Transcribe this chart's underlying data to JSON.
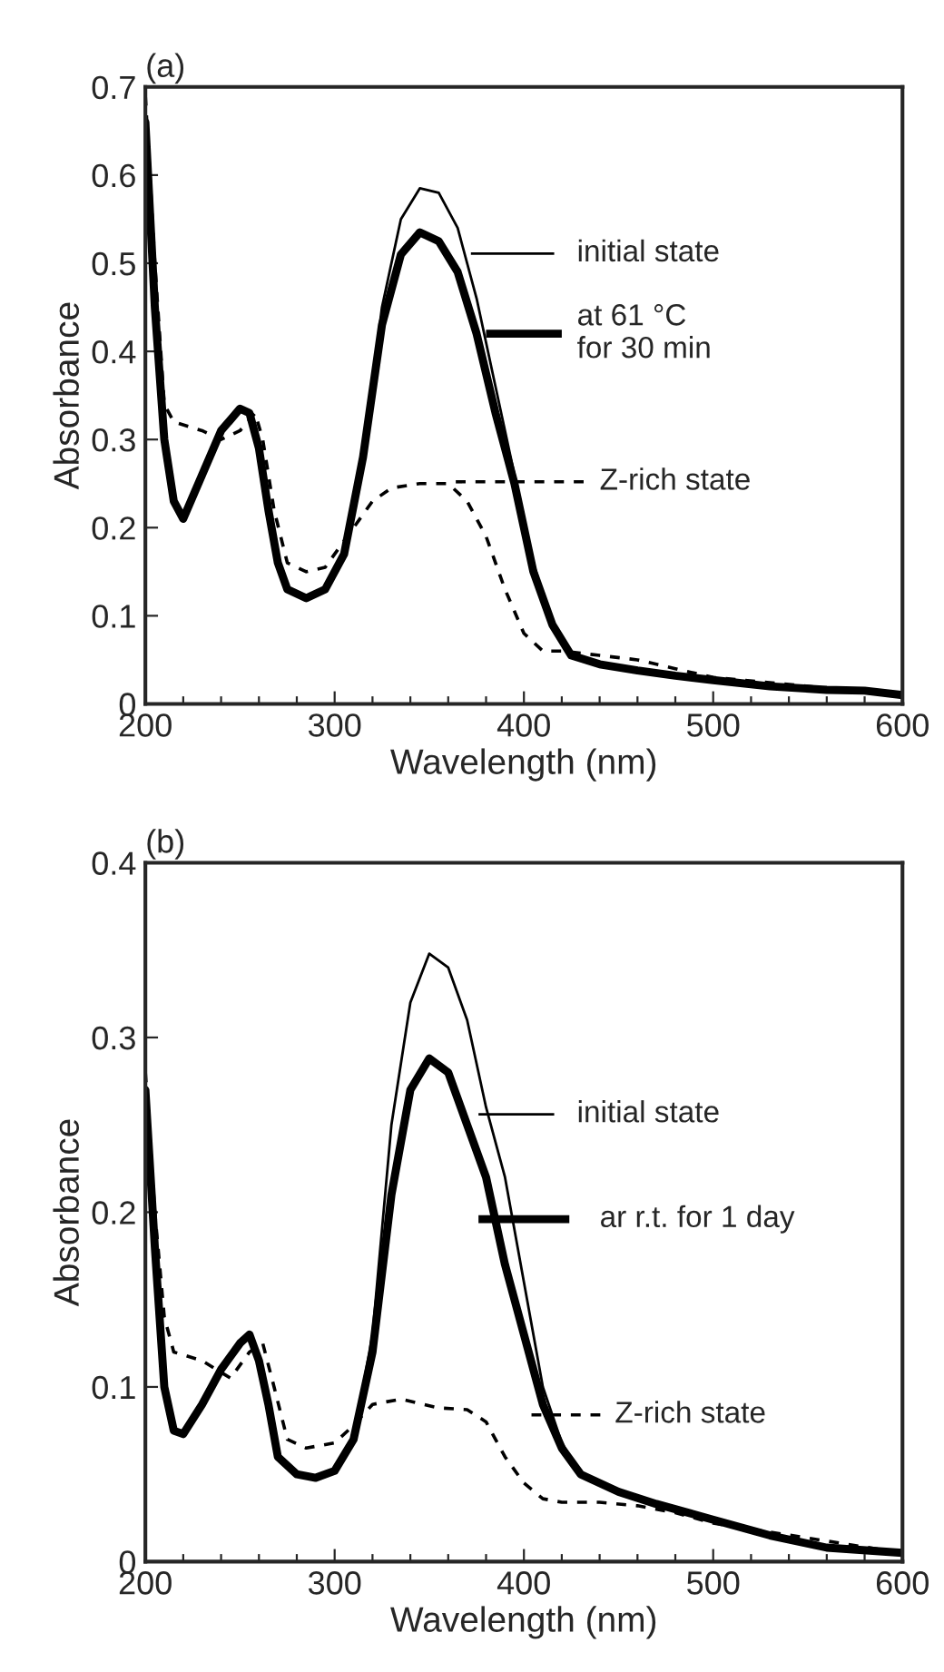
{
  "chart_data": [
    {
      "type": "line",
      "title": "(a)",
      "xlabel": "Wavelength (nm)",
      "ylabel": "Absorbance",
      "xlim": [
        200,
        600
      ],
      "ylim": [
        0,
        0.7
      ],
      "xticks": [
        200,
        {
          "value": 220,
          "label": null
        },
        {
          "value": 240,
          "label": null
        },
        {
          "value": 260,
          "label": null
        },
        {
          "value": 280,
          "label": null
        },
        300,
        {
          "value": 320,
          "label": null
        },
        {
          "value": 340,
          "label": null
        },
        {
          "value": 360,
          "label": null
        },
        {
          "value": 380,
          "label": null
        },
        400,
        {
          "value": 420,
          "label": null
        },
        {
          "value": 440,
          "label": null
        },
        {
          "value": 460,
          "label": null
        },
        {
          "value": 480,
          "label": null
        },
        500,
        {
          "value": 520,
          "label": null
        },
        {
          "value": 540,
          "label": null
        },
        {
          "value": 560,
          "label": null
        },
        {
          "value": 580,
          "label": null
        },
        600
      ],
      "yticks": [
        0,
        0.1,
        0.2,
        0.3,
        0.4,
        0.5,
        0.6,
        0.7
      ],
      "grid": false,
      "legend": "right",
      "marker": "none",
      "series": [
        {
          "name": "initial state",
          "color": "#000000",
          "line_style": "solid",
          "x": [
            200,
            205,
            210,
            215,
            220,
            230,
            240,
            250,
            255,
            260,
            265,
            270,
            275,
            285,
            295,
            305,
            315,
            325,
            335,
            345,
            355,
            365,
            375,
            385,
            395,
            405,
            415,
            425,
            440,
            460,
            480,
            500,
            530,
            560,
            580,
            600
          ],
          "values": [
            0.66,
            0.45,
            0.3,
            0.23,
            0.21,
            0.26,
            0.31,
            0.335,
            0.33,
            0.29,
            0.22,
            0.16,
            0.13,
            0.12,
            0.13,
            0.17,
            0.28,
            0.45,
            0.55,
            0.585,
            0.58,
            0.54,
            0.46,
            0.36,
            0.26,
            0.16,
            0.09,
            0.055,
            0.045,
            0.038,
            0.032,
            0.027,
            0.02,
            0.016,
            0.015,
            0.01
          ]
        },
        {
          "name": "at 61 °C\nfor 30 min",
          "color": "#000000",
          "line_style": "solid",
          "x": [
            200,
            205,
            210,
            215,
            220,
            230,
            240,
            250,
            255,
            260,
            265,
            270,
            275,
            285,
            295,
            305,
            315,
            325,
            335,
            345,
            355,
            365,
            375,
            385,
            395,
            405,
            415,
            425,
            440,
            460,
            480,
            500,
            530,
            560,
            580,
            600
          ],
          "values": [
            0.66,
            0.45,
            0.3,
            0.23,
            0.21,
            0.26,
            0.31,
            0.335,
            0.33,
            0.29,
            0.22,
            0.16,
            0.13,
            0.12,
            0.13,
            0.17,
            0.28,
            0.43,
            0.51,
            0.535,
            0.525,
            0.49,
            0.42,
            0.33,
            0.25,
            0.15,
            0.09,
            0.055,
            0.045,
            0.038,
            0.032,
            0.027,
            0.02,
            0.016,
            0.015,
            0.01
          ]
        },
        {
          "name": "Z-rich state",
          "color": "#000000",
          "line_style": "dashed",
          "x": [
            200,
            205,
            210,
            215,
            230,
            240,
            250,
            258,
            262,
            268,
            275,
            285,
            295,
            310,
            320,
            330,
            345,
            360,
            370,
            380,
            390,
            400,
            410,
            420,
            440,
            460,
            480,
            500,
            550,
            600
          ],
          "values": [
            0.69,
            0.5,
            0.34,
            0.32,
            0.31,
            0.3,
            0.31,
            0.33,
            0.3,
            0.22,
            0.16,
            0.15,
            0.155,
            0.2,
            0.23,
            0.245,
            0.25,
            0.25,
            0.23,
            0.19,
            0.13,
            0.08,
            0.06,
            0.06,
            0.055,
            0.05,
            0.04,
            0.03,
            0.02,
            0.01
          ]
        }
      ]
    },
    {
      "type": "line",
      "title": "(b)",
      "xlabel": "Wavelength (nm)",
      "ylabel": "Absorbance",
      "xlim": [
        200,
        600
      ],
      "ylim": [
        0,
        0.4
      ],
      "xticks": [
        200,
        {
          "value": 220,
          "label": null
        },
        {
          "value": 240,
          "label": null
        },
        {
          "value": 260,
          "label": null
        },
        {
          "value": 280,
          "label": null
        },
        300,
        {
          "value": 320,
          "label": null
        },
        {
          "value": 340,
          "label": null
        },
        {
          "value": 360,
          "label": null
        },
        {
          "value": 380,
          "label": null
        },
        400,
        {
          "value": 420,
          "label": null
        },
        {
          "value": 440,
          "label": null
        },
        {
          "value": 460,
          "label": null
        },
        {
          "value": 480,
          "label": null
        },
        500,
        {
          "value": 520,
          "label": null
        },
        {
          "value": 540,
          "label": null
        },
        {
          "value": 560,
          "label": null
        },
        {
          "value": 580,
          "label": null
        },
        600
      ],
      "yticks": [
        0,
        0.1,
        0.2,
        0.3,
        0.4
      ],
      "grid": false,
      "legend": "right",
      "marker": "none",
      "series": [
        {
          "name": "initial state",
          "color": "#000000",
          "line_style": "solid",
          "x": [
            200,
            205,
            210,
            215,
            220,
            230,
            240,
            250,
            255,
            260,
            265,
            270,
            280,
            290,
            300,
            310,
            320,
            330,
            340,
            350,
            360,
            370,
            380,
            390,
            400,
            410,
            420,
            430,
            450,
            470,
            500,
            530,
            560,
            600
          ],
          "values": [
            0.27,
            0.18,
            0.1,
            0.075,
            0.073,
            0.09,
            0.11,
            0.125,
            0.13,
            0.115,
            0.09,
            0.06,
            0.05,
            0.048,
            0.052,
            0.07,
            0.13,
            0.25,
            0.32,
            0.348,
            0.34,
            0.31,
            0.26,
            0.22,
            0.16,
            0.1,
            0.068,
            0.05,
            0.04,
            0.033,
            0.024,
            0.015,
            0.008,
            0.005
          ]
        },
        {
          "name": "ar r.t. for 1 day",
          "color": "#000000",
          "line_style": "solid",
          "x": [
            200,
            205,
            210,
            215,
            220,
            230,
            240,
            250,
            255,
            260,
            265,
            270,
            280,
            290,
            300,
            310,
            320,
            330,
            340,
            350,
            360,
            370,
            380,
            390,
            400,
            410,
            420,
            430,
            450,
            470,
            500,
            530,
            560,
            600
          ],
          "values": [
            0.27,
            0.18,
            0.1,
            0.075,
            0.073,
            0.09,
            0.11,
            0.125,
            0.13,
            0.115,
            0.09,
            0.06,
            0.05,
            0.048,
            0.052,
            0.07,
            0.12,
            0.21,
            0.27,
            0.288,
            0.28,
            0.25,
            0.22,
            0.17,
            0.13,
            0.09,
            0.065,
            0.05,
            0.04,
            0.033,
            0.024,
            0.015,
            0.008,
            0.005
          ]
        },
        {
          "name": "Z-rich state",
          "color": "#000000",
          "line_style": "dashed",
          "x": [
            200,
            205,
            210,
            215,
            230,
            245,
            255,
            262,
            268,
            275,
            285,
            300,
            310,
            320,
            335,
            355,
            370,
            380,
            390,
            400,
            410,
            420,
            440,
            460,
            480,
            500,
            600
          ],
          "values": [
            0.28,
            0.2,
            0.14,
            0.12,
            0.115,
            0.105,
            0.12,
            0.125,
            0.1,
            0.07,
            0.065,
            0.068,
            0.078,
            0.09,
            0.093,
            0.088,
            0.087,
            0.08,
            0.06,
            0.045,
            0.036,
            0.034,
            0.034,
            0.032,
            0.028,
            0.022,
            0.005
          ]
        }
      ]
    }
  ]
}
